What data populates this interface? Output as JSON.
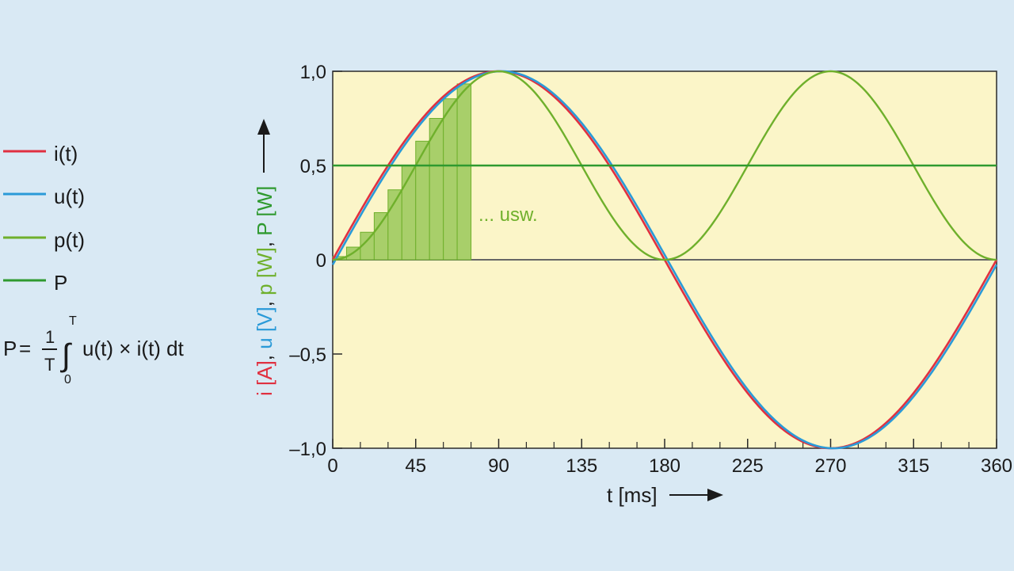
{
  "colors": {
    "background": "#d9e9f4",
    "plot_area": "#fbf5c8",
    "current": "#e03040",
    "voltage": "#2a9ad8",
    "power": "#6fb02c",
    "average_power": "#2f9a2f",
    "bars_fill": "#a8cf6a",
    "text": "#1a1a1a"
  },
  "legend": {
    "items": [
      {
        "label": "i(t)",
        "color": "#e03040"
      },
      {
        "label": "u(t)",
        "color": "#2a9ad8"
      },
      {
        "label": "p(t)",
        "color": "#6fb02c"
      },
      {
        "label": "P",
        "color": "#2f9a2f"
      }
    ]
  },
  "formula": {
    "lhs": "P",
    "equals": "=",
    "fraction_numerator": "1",
    "fraction_denominator": "T",
    "integral_sign": "∫",
    "upper_limit": "T",
    "lower_limit": "0",
    "integrand": "u(t) × i(t) dt"
  },
  "annotation": {
    "text": "... usw."
  },
  "chart_data": {
    "type": "line",
    "title": "",
    "xlabel": "t [ms]",
    "ylabel_parts": [
      {
        "text": "i [A]",
        "color": "#e03040"
      },
      {
        "text": ", ",
        "color": "#1a1a1a"
      },
      {
        "text": "u [V]",
        "color": "#2a9ad8"
      },
      {
        "text": ", ",
        "color": "#1a1a1a"
      },
      {
        "text": "p [W]",
        "color": "#6fb02c"
      },
      {
        "text": ", ",
        "color": "#1a1a1a"
      },
      {
        "text": "P [W]",
        "color": "#2f9a2f"
      }
    ],
    "xlim": [
      0,
      360
    ],
    "ylim": [
      -1,
      1
    ],
    "x_ticks": [
      0,
      45,
      90,
      135,
      180,
      225,
      270,
      315,
      360
    ],
    "x_tick_labels": [
      "0",
      "45",
      "90",
      "135",
      "180",
      "225",
      "270",
      "315",
      "360"
    ],
    "x_minor_step": 15,
    "y_ticks": [
      1,
      0.5,
      0,
      -0.5,
      -1
    ],
    "y_tick_labels": [
      "1,0",
      "0,5",
      "0",
      "–0,5",
      "–1,0"
    ],
    "series": [
      {
        "name": "i(t)",
        "formula": "sin(t·360°/360ms)",
        "amplitude": 1,
        "phase_deg": 0,
        "color": "#e03040"
      },
      {
        "name": "u(t)",
        "formula": "sin(t·360°/360ms)",
        "amplitude": 1,
        "phase_deg": 1.5,
        "color": "#2a9ad8"
      },
      {
        "name": "p(t)",
        "formula": "u(t)·i(t) = sin²",
        "color": "#6fb02c"
      },
      {
        "name": "P",
        "constant": 0.5,
        "color": "#2f9a2f"
      }
    ],
    "sample_bars": {
      "x": [
        7.5,
        15,
        22.5,
        30,
        37.5,
        45,
        52.5,
        60,
        67.5,
        75
      ],
      "values": [
        0.017,
        0.067,
        0.146,
        0.25,
        0.371,
        0.5,
        0.629,
        0.75,
        0.854,
        0.933
      ],
      "width_ms": 7.5
    }
  }
}
